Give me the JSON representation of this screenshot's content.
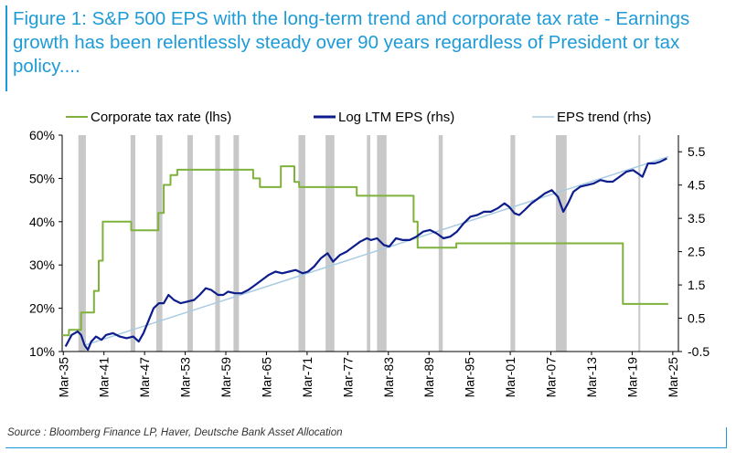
{
  "title": "Figure 1: S&P 500 EPS with the long-term trend and corporate tax rate - Earnings growth has been relentlessly steady over 90 years regardless of President or tax policy....",
  "source": "Source : Bloomberg Finance LP, Haver, Deutsche Bank Asset Allocation",
  "colors": {
    "title": "#1e9bd7",
    "tax": "#7fb13d",
    "eps": "#0d1d8c",
    "trend": "#a8cbe3",
    "recession": "#c8c8c8"
  },
  "chart_data": {
    "type": "line",
    "legend": [
      "Corporate tax rate (lhs)",
      "Log LTM EPS (rhs)",
      "EPS trend (rhs)"
    ],
    "legend_position": "top",
    "x_ticks": [
      "Mar-35",
      "Mar-41",
      "Mar-47",
      "Mar-53",
      "Mar-59",
      "Mar-65",
      "Mar-71",
      "Mar-77",
      "Mar-83",
      "Mar-89",
      "Mar-95",
      "Mar-01",
      "Mar-07",
      "Mar-13",
      "Mar-19",
      "Mar-25"
    ],
    "x_range": [
      1935.0,
      2026.0
    ],
    "y_left": {
      "ticks": [
        "10%",
        "20%",
        "30%",
        "40%",
        "50%",
        "60%"
      ],
      "range": [
        10,
        60
      ]
    },
    "y_right": {
      "ticks": [
        "-0.5",
        "0.5",
        "1.5",
        "2.5",
        "3.5",
        "4.5",
        "5.5"
      ],
      "range": [
        -0.5,
        6.0
      ]
    },
    "recessions": [
      [
        1937.4,
        1938.5
      ],
      [
        1945.1,
        1945.8
      ],
      [
        1948.9,
        1949.8
      ],
      [
        1953.5,
        1954.3
      ],
      [
        1957.6,
        1958.3
      ],
      [
        1960.3,
        1961.1
      ],
      [
        1969.9,
        1970.9
      ],
      [
        1973.9,
        1975.2
      ],
      [
        1980.0,
        1980.5
      ],
      [
        1981.5,
        1982.9
      ],
      [
        1990.6,
        1991.2
      ],
      [
        2001.2,
        2001.9
      ],
      [
        2007.9,
        2009.5
      ],
      [
        2020.1,
        2020.3
      ]
    ],
    "series": [
      {
        "name": "Corporate tax rate (lhs)",
        "axis": "left",
        "values": [
          [
            1935.0,
            13.75
          ],
          [
            1936.0,
            13.75
          ],
          [
            1936.0,
            15.0
          ],
          [
            1937.8,
            15.0
          ],
          [
            1937.8,
            19.0
          ],
          [
            1939.7,
            19.0
          ],
          [
            1939.7,
            24.0
          ],
          [
            1940.4,
            24.0
          ],
          [
            1940.4,
            31.0
          ],
          [
            1941.0,
            31.0
          ],
          [
            1941.0,
            40.0
          ],
          [
            1945.2,
            40.0
          ],
          [
            1945.2,
            38.0
          ],
          [
            1949.2,
            38.0
          ],
          [
            1949.2,
            42.0
          ],
          [
            1950.0,
            42.0
          ],
          [
            1950.0,
            48.5
          ],
          [
            1951.0,
            48.5
          ],
          [
            1951.0,
            50.75
          ],
          [
            1952.0,
            50.75
          ],
          [
            1952.0,
            52.0
          ],
          [
            1963.2,
            52.0
          ],
          [
            1963.2,
            50.0
          ],
          [
            1964.2,
            50.0
          ],
          [
            1964.2,
            48.0
          ],
          [
            1967.3,
            48.0
          ],
          [
            1967.3,
            52.8
          ],
          [
            1969.3,
            52.8
          ],
          [
            1969.3,
            49.2
          ],
          [
            1970.0,
            49.2
          ],
          [
            1970.0,
            48.0
          ],
          [
            1978.5,
            48.0
          ],
          [
            1978.5,
            46.0
          ],
          [
            1986.9,
            46.0
          ],
          [
            1986.9,
            40.0
          ],
          [
            1987.5,
            40.0
          ],
          [
            1987.5,
            34.0
          ],
          [
            1993.2,
            34.0
          ],
          [
            1993.2,
            35.0
          ],
          [
            2017.8,
            35.0
          ],
          [
            2017.8,
            21.0
          ],
          [
            2024.5,
            21.0
          ]
        ]
      },
      {
        "name": "Log LTM EPS (rhs)",
        "axis": "right",
        "values": [
          [
            1935.5,
            -0.35
          ],
          [
            1936.4,
            0.0
          ],
          [
            1937.3,
            0.1
          ],
          [
            1937.8,
            0.0
          ],
          [
            1938.3,
            -0.3
          ],
          [
            1938.8,
            -0.45
          ],
          [
            1939.3,
            -0.2
          ],
          [
            1940.0,
            -0.05
          ],
          [
            1940.8,
            -0.15
          ],
          [
            1941.5,
            0.0
          ],
          [
            1942.5,
            0.05
          ],
          [
            1943.5,
            -0.05
          ],
          [
            1944.5,
            -0.1
          ],
          [
            1945.5,
            -0.05
          ],
          [
            1946.3,
            -0.2
          ],
          [
            1947.0,
            0.05
          ],
          [
            1947.8,
            0.45
          ],
          [
            1948.5,
            0.8
          ],
          [
            1949.3,
            0.95
          ],
          [
            1950.0,
            0.95
          ],
          [
            1950.7,
            1.2
          ],
          [
            1951.5,
            1.05
          ],
          [
            1952.5,
            0.95
          ],
          [
            1953.5,
            1.0
          ],
          [
            1954.5,
            1.05
          ],
          [
            1955.3,
            1.2
          ],
          [
            1956.2,
            1.4
          ],
          [
            1957.0,
            1.35
          ],
          [
            1958.0,
            1.2
          ],
          [
            1958.8,
            1.2
          ],
          [
            1959.5,
            1.3
          ],
          [
            1960.5,
            1.25
          ],
          [
            1961.5,
            1.25
          ],
          [
            1962.5,
            1.35
          ],
          [
            1963.5,
            1.5
          ],
          [
            1964.5,
            1.65
          ],
          [
            1965.5,
            1.8
          ],
          [
            1966.5,
            1.9
          ],
          [
            1967.5,
            1.85
          ],
          [
            1968.5,
            1.9
          ],
          [
            1969.5,
            1.95
          ],
          [
            1970.5,
            1.85
          ],
          [
            1971.3,
            1.9
          ],
          [
            1972.2,
            2.05
          ],
          [
            1973.2,
            2.3
          ],
          [
            1974.2,
            2.45
          ],
          [
            1975.0,
            2.2
          ],
          [
            1976.0,
            2.4
          ],
          [
            1977.0,
            2.5
          ],
          [
            1978.0,
            2.65
          ],
          [
            1979.0,
            2.8
          ],
          [
            1980.0,
            2.9
          ],
          [
            1980.6,
            2.85
          ],
          [
            1981.5,
            2.9
          ],
          [
            1982.5,
            2.7
          ],
          [
            1983.3,
            2.65
          ],
          [
            1984.3,
            2.9
          ],
          [
            1985.3,
            2.85
          ],
          [
            1986.3,
            2.85
          ],
          [
            1987.3,
            2.95
          ],
          [
            1988.3,
            3.1
          ],
          [
            1989.3,
            3.15
          ],
          [
            1990.3,
            3.05
          ],
          [
            1991.3,
            2.9
          ],
          [
            1992.3,
            2.95
          ],
          [
            1993.3,
            3.1
          ],
          [
            1994.3,
            3.35
          ],
          [
            1995.3,
            3.55
          ],
          [
            1996.3,
            3.6
          ],
          [
            1997.3,
            3.7
          ],
          [
            1998.3,
            3.7
          ],
          [
            1999.3,
            3.8
          ],
          [
            2000.3,
            3.95
          ],
          [
            2001.0,
            3.85
          ],
          [
            2001.8,
            3.65
          ],
          [
            2002.5,
            3.6
          ],
          [
            2003.3,
            3.75
          ],
          [
            2004.3,
            3.95
          ],
          [
            2005.3,
            4.1
          ],
          [
            2006.3,
            4.25
          ],
          [
            2007.3,
            4.35
          ],
          [
            2008.2,
            4.15
          ],
          [
            2009.0,
            3.7
          ],
          [
            2009.7,
            3.95
          ],
          [
            2010.5,
            4.3
          ],
          [
            2011.5,
            4.45
          ],
          [
            2012.5,
            4.5
          ],
          [
            2013.5,
            4.55
          ],
          [
            2014.5,
            4.65
          ],
          [
            2015.5,
            4.6
          ],
          [
            2016.3,
            4.6
          ],
          [
            2017.3,
            4.75
          ],
          [
            2018.3,
            4.9
          ],
          [
            2019.3,
            4.95
          ],
          [
            2020.0,
            4.85
          ],
          [
            2020.7,
            4.75
          ],
          [
            2021.5,
            5.15
          ],
          [
            2022.5,
            5.15
          ],
          [
            2023.3,
            5.2
          ],
          [
            2024.3,
            5.3
          ]
        ]
      },
      {
        "name": "EPS trend (rhs)",
        "axis": "right",
        "values": [
          [
            1938.5,
            -0.3
          ],
          [
            2024.5,
            5.35
          ]
        ]
      }
    ]
  }
}
